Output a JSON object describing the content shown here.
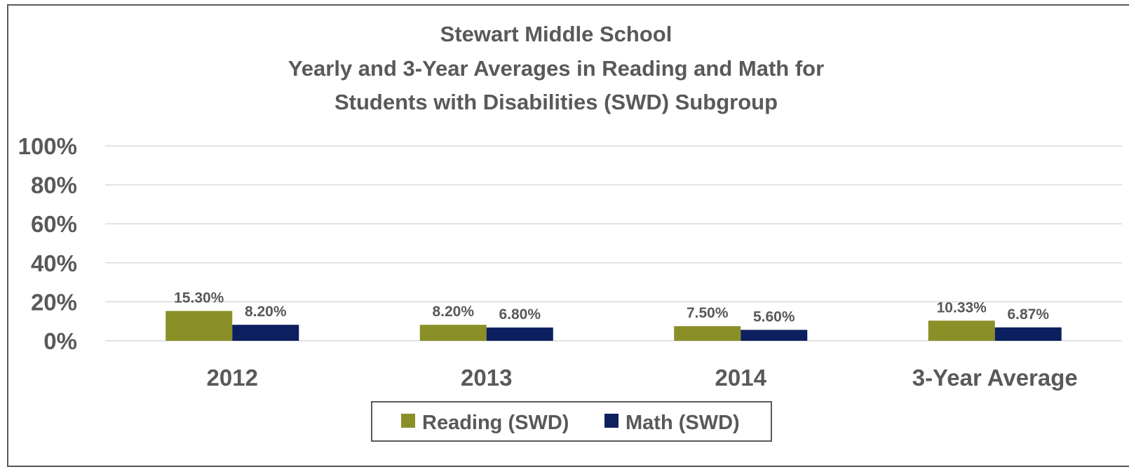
{
  "chart_data": {
    "type": "bar",
    "title_lines": [
      "Stewart Middle School",
      "Yearly and 3-Year Averages in Reading and Math for",
      "Students with Disabilities (SWD) Subgroup"
    ],
    "categories": [
      "2012",
      "2013",
      "2014",
      "3-Year Average"
    ],
    "series": [
      {
        "name": "Reading (SWD)",
        "color": "#8a8f28",
        "values": [
          15.3,
          8.2,
          7.5,
          10.33
        ],
        "labels": [
          "15.30%",
          "8.20%",
          "7.50%",
          "10.33%"
        ]
      },
      {
        "name": "Math (SWD)",
        "color": "#0c1f5e",
        "values": [
          8.2,
          6.8,
          5.6,
          6.87
        ],
        "labels": [
          "8.20%",
          "6.80%",
          "5.60%",
          "6.87%"
        ]
      }
    ],
    "y_ticks": [
      "0%",
      "20%",
      "40%",
      "60%",
      "80%",
      "100%"
    ],
    "ylim": [
      0,
      100
    ],
    "grid": true,
    "legend_position": "bottom"
  }
}
